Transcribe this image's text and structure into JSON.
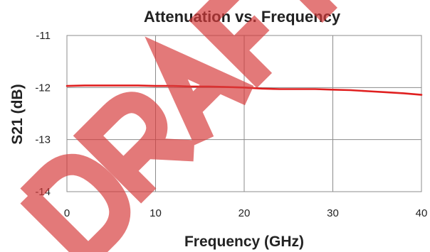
{
  "chart_data": {
    "type": "line",
    "title": "Attenuation vs. Frequency",
    "xlabel": "Frequency (GHz)",
    "ylabel": "S21 (dB)",
    "xlim": [
      0,
      40
    ],
    "ylim": [
      -14,
      -11
    ],
    "x_ticks": [
      "0",
      "10",
      "20",
      "30",
      "40"
    ],
    "y_ticks": [
      "-11",
      "-12",
      "-13",
      "-14"
    ],
    "grid": true,
    "series": [
      {
        "color": "#e02020",
        "x": [
          0,
          2,
          4,
          6,
          8,
          10,
          12,
          14,
          16,
          18,
          20,
          22,
          24,
          26,
          28,
          30,
          32,
          34,
          36,
          38,
          40
        ],
        "y": [
          -11.97,
          -11.96,
          -11.96,
          -11.96,
          -11.96,
          -11.97,
          -11.97,
          -11.98,
          -11.98,
          -11.99,
          -12.0,
          -12.02,
          -12.03,
          -12.03,
          -12.03,
          -12.04,
          -12.05,
          -12.07,
          -12.09,
          -12.11,
          -12.14
        ]
      }
    ]
  },
  "watermark": {
    "text": "DRAFT",
    "color": "#d73b3b"
  }
}
